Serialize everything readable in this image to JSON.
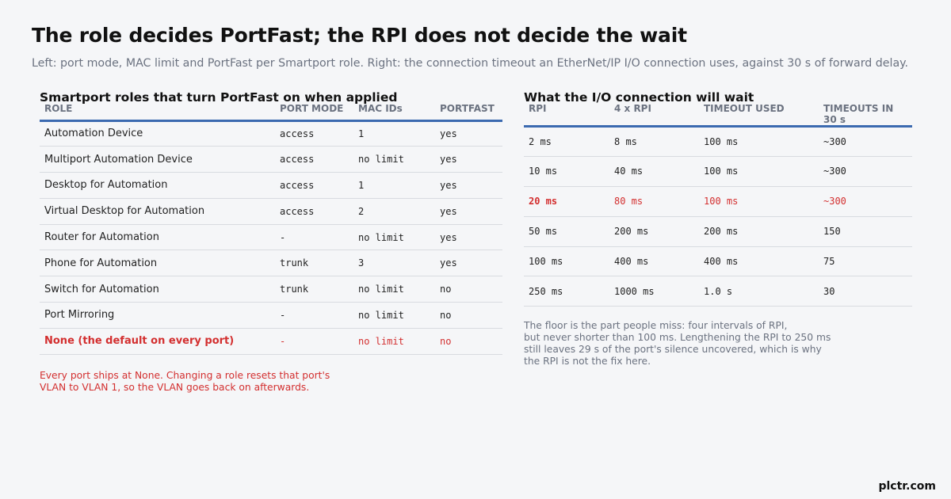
{
  "title": "The role decides PortFast; the RPI does not decide the wait",
  "subtitle": "Left: port mode, MAC limit and PortFast per Smartport role. Right: the connection timeout an EtherNet/IP I/O connection uses, against 30 s of forward delay.",
  "left": {
    "title": "Smartport roles that turn PortFast on when applied",
    "headers": [
      "ROLE",
      "PORT MODE",
      "MAC IDs",
      "PORTFAST"
    ],
    "rows": [
      [
        "Automation Device",
        "access",
        "1",
        "yes"
      ],
      [
        "Multiport Automation Device",
        "access",
        "no limit",
        "yes"
      ],
      [
        "Desktop for Automation",
        "access",
        "1",
        "yes"
      ],
      [
        "Virtual Desktop for Automation",
        "access",
        "2",
        "yes"
      ],
      [
        "Router for Automation",
        "-",
        "no limit",
        "yes"
      ],
      [
        "Phone for Automation",
        "trunk",
        "3",
        "yes"
      ],
      [
        "Switch for Automation",
        "trunk",
        "no limit",
        "no"
      ],
      [
        "Port Mirroring",
        "-",
        "no limit",
        "no"
      ],
      [
        "None   (the default on every port)",
        "-",
        "no limit",
        "no"
      ]
    ],
    "note": "Every port ships at None. Changing a role resets that port's\nVLAN to VLAN 1, so the VLAN goes back on afterwards."
  },
  "right": {
    "title": "What the I/O connection will wait",
    "headers": [
      "RPI",
      "4 x RPI",
      "TIMEOUT USED",
      "TIMEOUTS IN 30 s"
    ],
    "rows": [
      [
        "2 ms",
        "8 ms",
        "100 ms",
        "~300"
      ],
      [
        "10 ms",
        "40 ms",
        "100 ms",
        "~300"
      ],
      [
        "20 ms",
        "80 ms",
        "100 ms",
        "~300"
      ],
      [
        "50 ms",
        "200 ms",
        "200 ms",
        "150"
      ],
      [
        "100 ms",
        "400 ms",
        "400 ms",
        "75"
      ],
      [
        "250 ms",
        "1000 ms",
        "1.0 s",
        "30"
      ]
    ],
    "note": "The floor is the part people miss: four intervals of RPI,\nbut never shorter than 100 ms. Lengthening the RPI to 250 ms\nstill leaves 29 s of the port's silence uncovered, which is why\nthe RPI is not the fix here."
  },
  "brand": "plctr.com",
  "colors": {
    "accent": "#3b6ab0",
    "highlight": "#d32f2f"
  }
}
